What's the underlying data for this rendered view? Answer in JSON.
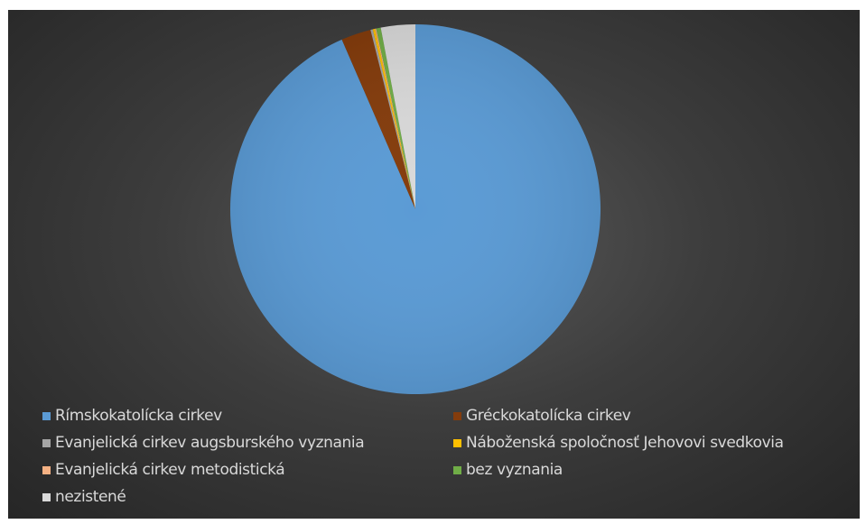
{
  "chart_data": {
    "type": "pie",
    "title": "",
    "legend_placement": "bottom",
    "categories": [
      "Rímskokatolícka cirkev",
      "Gréckokatolícka cirkev",
      "Evanjelická cirkev augsburského vyznania",
      "Náboženská spoločnosť Jehovovi svedkovia",
      "Evanjelická cirkev metodistická",
      "bez vyznania",
      "nezistené"
    ],
    "values": [
      93.5,
      2.6,
      0.2,
      0.2,
      0.1,
      0.4,
      3.0
    ],
    "colors": [
      "#5b9bd5",
      "#843c0c",
      "#a5a5a5",
      "#ffc000",
      "#f4b183",
      "#70ad47",
      "#d9d9d9"
    ]
  }
}
